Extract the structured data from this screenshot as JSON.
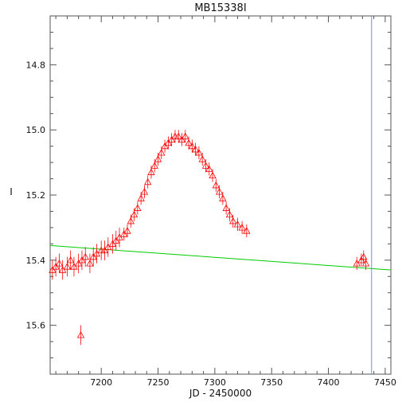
{
  "chart_data": {
    "type": "scatter",
    "title": "MB15338I",
    "xlabel": "JD - 2450000",
    "ylabel": "I",
    "xlim": [
      7155,
      7455
    ],
    "ylim": [
      15.75,
      14.65
    ],
    "y_inverted": true,
    "x_ticks": [
      7200,
      7250,
      7300,
      7350,
      7400,
      7450
    ],
    "y_ticks": [
      14.8,
      15.0,
      15.2,
      15.4,
      15.6
    ],
    "grid": false,
    "marker": "open-triangle",
    "colors": {
      "data": "#ff0000",
      "model": "#00cc00",
      "marker_line": "#8080ff",
      "frame": "#555555",
      "text": "#111111"
    },
    "model_line": {
      "x": [
        7155,
        7455
      ],
      "y": [
        15.355,
        15.43
      ]
    },
    "vertical_marker_x": 7438,
    "outlier": {
      "x": 7182,
      "y": 15.63,
      "err": 0.03
    },
    "series": [
      {
        "x": [
          7157,
          7160,
          7163,
          7166,
          7170,
          7173,
          7176,
          7180,
          7183,
          7186,
          7190,
          7193,
          7196,
          7200,
          7203,
          7206,
          7210,
          7213,
          7216,
          7220,
          7223,
          7226,
          7229,
          7232,
          7235,
          7238,
          7241,
          7244,
          7247,
          7250,
          7253,
          7256,
          7259,
          7262,
          7265,
          7268,
          7271,
          7274,
          7277,
          7280,
          7283,
          7286,
          7289,
          7292,
          7295,
          7298,
          7301,
          7304,
          7307,
          7310,
          7313,
          7316,
          7320,
          7324,
          7328,
          7425,
          7429,
          7431,
          7433
        ],
        "y": [
          15.43,
          15.42,
          15.41,
          15.43,
          15.42,
          15.4,
          15.42,
          15.41,
          15.4,
          15.39,
          15.41,
          15.39,
          15.38,
          15.37,
          15.37,
          15.36,
          15.35,
          15.34,
          15.33,
          15.32,
          15.31,
          15.28,
          15.26,
          15.24,
          15.21,
          15.19,
          15.16,
          15.13,
          15.11,
          15.09,
          15.07,
          15.05,
          15.04,
          15.03,
          15.02,
          15.02,
          15.03,
          15.02,
          15.04,
          15.05,
          15.06,
          15.07,
          15.09,
          15.11,
          15.12,
          15.14,
          15.17,
          15.19,
          15.21,
          15.24,
          15.26,
          15.28,
          15.29,
          15.3,
          15.31,
          15.41,
          15.4,
          15.39,
          15.41
        ],
        "err": [
          0.03,
          0.03,
          0.03,
          0.03,
          0.03,
          0.03,
          0.03,
          0.03,
          0.03,
          0.03,
          0.03,
          0.03,
          0.03,
          0.03,
          0.03,
          0.03,
          0.03,
          0.03,
          0.03,
          0.02,
          0.02,
          0.02,
          0.02,
          0.02,
          0.02,
          0.02,
          0.02,
          0.02,
          0.02,
          0.02,
          0.02,
          0.02,
          0.02,
          0.02,
          0.02,
          0.02,
          0.02,
          0.02,
          0.02,
          0.02,
          0.02,
          0.02,
          0.02,
          0.02,
          0.02,
          0.02,
          0.02,
          0.02,
          0.02,
          0.02,
          0.02,
          0.02,
          0.02,
          0.02,
          0.02,
          0.02,
          0.02,
          0.02,
          0.02
        ]
      }
    ]
  }
}
